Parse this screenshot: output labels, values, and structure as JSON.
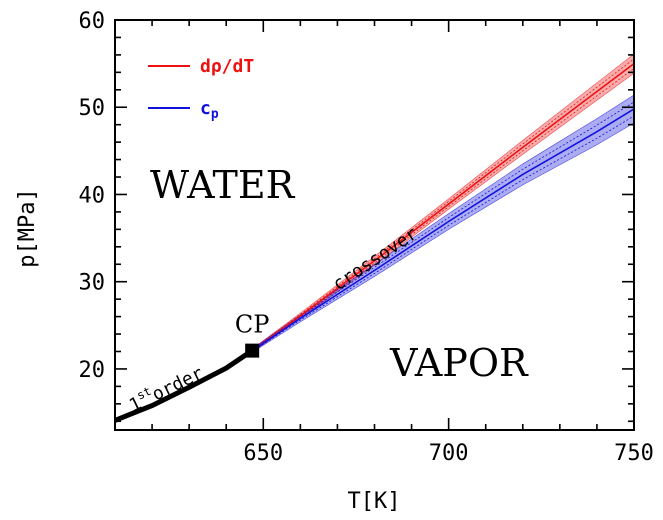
{
  "chart_data": {
    "type": "line",
    "xlabel": "T[K]",
    "ylabel": "p[MPa]",
    "xlim": [
      610,
      750
    ],
    "ylim": [
      13,
      60
    ],
    "xticks": [
      650,
      700,
      750
    ],
    "yticks": [
      20,
      30,
      40,
      50,
      60
    ],
    "grid": false,
    "legend_position": "top-left",
    "series": [
      {
        "name": "first-order",
        "color": "#000000",
        "x": [
          610,
          620,
          630,
          640,
          647
        ],
        "y": [
          14.1,
          15.8,
          17.9,
          20.1,
          22.1
        ]
      },
      {
        "name": "dρ/dT",
        "color": "#ee1111",
        "x": [
          647,
          660,
          680,
          700,
          720,
          740,
          750
        ],
        "y": [
          22.1,
          26.1,
          32.4,
          38.9,
          45.4,
          51.8,
          55.0
        ],
        "band": [
          0.2,
          0.3,
          0.5,
          0.6,
          0.8,
          1.0,
          1.1
        ]
      },
      {
        "name": "c_p",
        "color": "#1111dd",
        "x": [
          647,
          660,
          680,
          700,
          720,
          740,
          750
        ],
        "y": [
          22.1,
          25.8,
          31.3,
          36.9,
          42.3,
          47.2,
          49.8
        ],
        "band": [
          0.2,
          0.4,
          0.7,
          0.9,
          1.2,
          1.5,
          1.6
        ]
      }
    ],
    "legend": [
      {
        "label": "dρ/dT",
        "color": "#ee1111"
      },
      {
        "label": "cp",
        "color": "#1111dd"
      }
    ],
    "critical_point": {
      "label": "CP",
      "x": 647,
      "y": 22.1
    },
    "annotations": {
      "water": "WATER",
      "vapor": "VAPOR",
      "crossover": "crossover",
      "first_order_sup": "st",
      "first_order_num": "1",
      "first_order_text": "order"
    }
  }
}
